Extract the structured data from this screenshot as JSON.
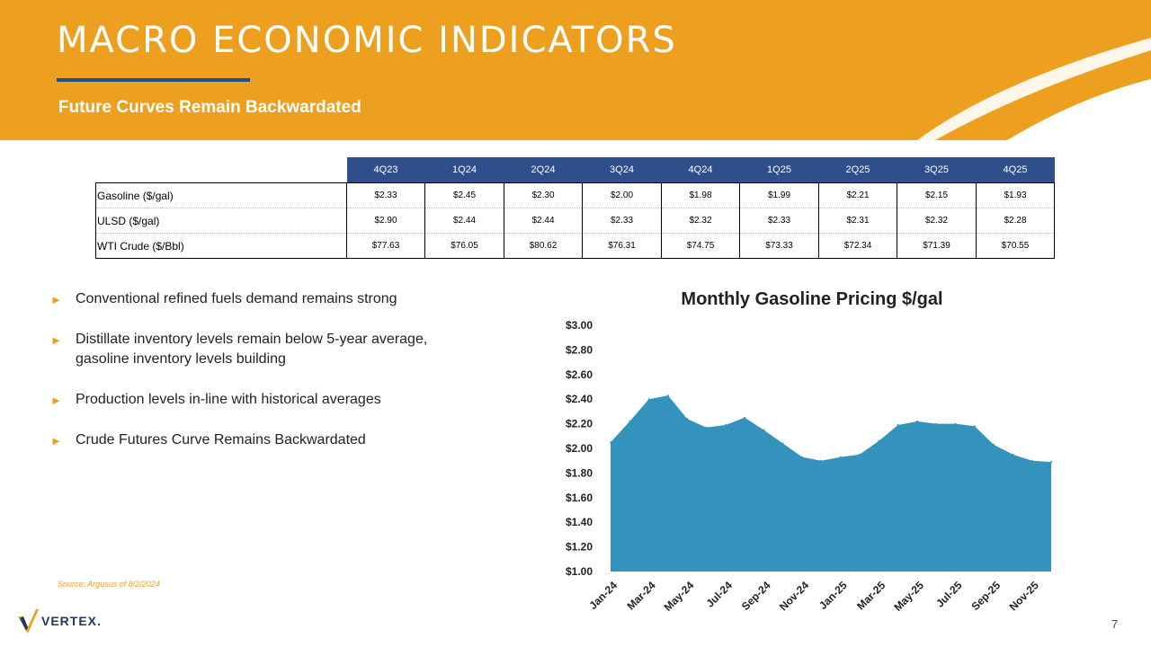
{
  "header": {
    "title": "MACRO ECONOMIC INDICATORS",
    "subtitle": "Future Curves Remain Backwardated",
    "bg_color": "#eda01f",
    "rule_color": "#1f4e8c"
  },
  "table": {
    "columns": [
      "4Q23",
      "1Q24",
      "2Q24",
      "3Q24",
      "4Q24",
      "1Q25",
      "2Q25",
      "3Q25",
      "4Q25"
    ],
    "rows": [
      {
        "label": "Gasoline ($/gal)",
        "values": [
          "$2.33",
          "$2.45",
          "$2.30",
          "$2.00",
          "$1.98",
          "$1.99",
          "$2.21",
          "$2.15",
          "$1.93"
        ]
      },
      {
        "label": "ULSD ($/gal)",
        "values": [
          "$2.90",
          "$2.44",
          "$2.44",
          "$2.33",
          "$2.32",
          "$2.33",
          "$2.31",
          "$2.32",
          "$2.28"
        ]
      },
      {
        "label": "WTI Crude ($/Bbl)",
        "values": [
          "$77.63",
          "$76.05",
          "$80.62",
          "$76.31",
          "$74.75",
          "$73.33",
          "$72.34",
          "$71.39",
          "$70.55"
        ]
      }
    ]
  },
  "bullets": [
    "Conventional refined fuels demand remains strong",
    "Distillate inventory levels remain below 5-year average, gasoline inventory levels building",
    "Production levels in-line with historical averages",
    "Crude Futures Curve Remains Backwardated"
  ],
  "bullet_glyph": "►",
  "source": "Source: Argusus of 8/2/2024",
  "logo": {
    "text": "VERTEX."
  },
  "page_number": "7",
  "chart_data": {
    "type": "area",
    "title": "Monthly Gasoline Pricing $/gal",
    "x": [
      "Jan-24",
      "Feb-24",
      "Mar-24",
      "Apr-24",
      "May-24",
      "Jun-24",
      "Jul-24",
      "Aug-24",
      "Sep-24",
      "Oct-24",
      "Nov-24",
      "Dec-24",
      "Jan-25",
      "Feb-25",
      "Mar-25",
      "Apr-25",
      "May-25",
      "Jun-25",
      "Jul-25",
      "Aug-25",
      "Sep-25",
      "Oct-25",
      "Nov-25",
      "Dec-25"
    ],
    "values": [
      2.05,
      2.22,
      2.4,
      2.43,
      2.24,
      2.17,
      2.19,
      2.25,
      2.15,
      2.04,
      1.93,
      1.9,
      1.93,
      1.95,
      2.06,
      2.19,
      2.22,
      2.2,
      2.2,
      2.18,
      2.03,
      1.95,
      1.9,
      1.89
    ],
    "tick_labels": [
      "Jan-24",
      "Mar-24",
      "May-24",
      "Jul-24",
      "Sep-24",
      "Nov-24",
      "Jan-25",
      "Mar-25",
      "May-25",
      "Jul-25",
      "Sep-25",
      "Nov-25"
    ],
    "yticks": [
      "$3.00",
      "$2.80",
      "$2.60",
      "$2.40",
      "$2.20",
      "$2.00",
      "$1.80",
      "$1.60",
      "$1.40",
      "$1.20",
      "$1.00"
    ],
    "ylim": [
      1.0,
      3.0
    ],
    "xlabel": "",
    "ylabel": "",
    "color": "#3493bd"
  }
}
